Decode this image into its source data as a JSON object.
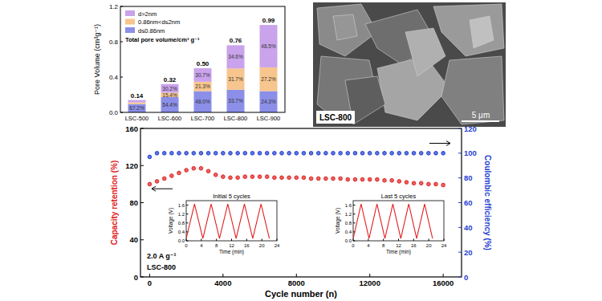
{
  "chart_data": [
    {
      "type": "bar",
      "stacked": true,
      "ylabel": "Pore Volume (cm³g⁻¹)",
      "legend_title": "Total pore volume/cm³ g⁻¹",
      "legend": "upper left",
      "categories": [
        "LSC-500",
        "LSC-600",
        "LSC-700",
        "LSC-800",
        "LSC-900"
      ],
      "series": [
        {
          "name": "d≤0.86nm",
          "color": "#8b8fe8",
          "values": [
            0.094,
            0.174,
            0.24,
            0.256,
            0.241
          ],
          "percent_labels": [
            "67.2%",
            "54.4%",
            "48.0%",
            "33.7%",
            "24.3%"
          ]
        },
        {
          "name": "0.86nm<d≤2nm",
          "color": "#f7c58e",
          "values": [
            0.02,
            0.049,
            0.107,
            0.241,
            0.269
          ],
          "percent_labels": [
            null,
            "15.4%",
            "21.3%",
            "31.7%",
            "27.2%"
          ]
        },
        {
          "name": "d>2nm",
          "color": "#c9a3ec",
          "values": [
            0.026,
            0.097,
            0.153,
            0.263,
            0.48
          ],
          "percent_labels": [
            null,
            "30.2%",
            "30.7%",
            "34.6%",
            "48.5%"
          ]
        }
      ],
      "totals": [
        0.14,
        0.32,
        0.5,
        0.76,
        0.99
      ],
      "total_labels": [
        "0.14",
        "0.32",
        "0.50",
        "0.76",
        "0.99"
      ],
      "ylim": [
        0,
        1.2
      ],
      "yticks": [
        {
          "value": 0,
          "label": "0.0"
        },
        {
          "value": 0.4,
          "label": "0.4"
        },
        {
          "value": 0.8,
          "label": "0.8"
        },
        {
          "value": 1.2,
          "label": "1.2"
        }
      ]
    },
    {
      "type": "scatter",
      "xlabel": "Cycle number (n)",
      "ylabel": "Capacity retention (%)",
      "y2label": "Coulombic efficiency (%)",
      "annotations": [
        "2.0 A g⁻¹",
        "LSC-800"
      ],
      "x": [
        0,
        400,
        800,
        1200,
        1600,
        2000,
        2400,
        2800,
        3200,
        3600,
        4000,
        4400,
        4800,
        5200,
        5600,
        6000,
        6400,
        6800,
        7200,
        7600,
        8000,
        8400,
        8800,
        9200,
        9600,
        10000,
        10400,
        10800,
        11200,
        11600,
        12000,
        12400,
        12800,
        13200,
        13600,
        14000,
        14400,
        14800,
        15200,
        15600,
        16000
      ],
      "series": [
        {
          "color": "#e02020",
          "marker": "circle",
          "values": [
            100,
            103,
            106,
            109,
            112,
            115,
            117,
            117,
            114,
            110,
            108,
            107,
            107,
            108,
            108,
            108,
            108,
            107,
            107,
            107,
            107,
            107,
            106,
            106,
            106,
            106,
            106,
            105,
            105,
            105,
            105,
            105,
            104,
            104,
            103,
            102,
            101,
            101,
            100,
            100,
            99
          ]
        },
        {
          "color": "#1e3cd0",
          "marker": "circle",
          "axis": "y2",
          "values": [
            97,
            100,
            100,
            100,
            100,
            100,
            100,
            100,
            100,
            100,
            100,
            100,
            100,
            100,
            100,
            100,
            100,
            100,
            100,
            100,
            100,
            100,
            100,
            100,
            100,
            100,
            100,
            100,
            100,
            100,
            100,
            100,
            100,
            100,
            100,
            100,
            100,
            100,
            100,
            100,
            100
          ]
        }
      ],
      "xlim": [
        -500,
        17000
      ],
      "xticks": [
        0,
        4000,
        8000,
        12000,
        16000
      ],
      "ylim": [
        0,
        160
      ],
      "yticks": [
        0,
        40,
        80,
        120,
        160
      ],
      "y2lim": [
        0,
        120
      ],
      "y2ticks": [
        0,
        20,
        40,
        60,
        80,
        100,
        120
      ]
    },
    {
      "type": "line",
      "title": "Initial 5 cycles",
      "xlabel": "Time (min)",
      "ylabel": "Voltage (V)",
      "color": "#e02020",
      "x": [
        0,
        2.2,
        4.4,
        6.6,
        8.8,
        11,
        13.2,
        15.4,
        17.6,
        19.8,
        22
      ],
      "values": [
        0.1,
        1.65,
        0.1,
        1.65,
        0.1,
        1.65,
        0.1,
        1.65,
        0.1,
        1.65,
        0.1
      ],
      "xlim": [
        0,
        24
      ],
      "xticks": [
        0,
        4,
        8,
        12,
        16,
        20,
        24
      ],
      "ylim": [
        0,
        1.8
      ],
      "yticks": [
        {
          "value": 0,
          "label": "0.0"
        },
        {
          "value": 0.4,
          "label": "0.4"
        },
        {
          "value": 0.8,
          "label": "0.8"
        },
        {
          "value": 1.2,
          "label": "1.2"
        },
        {
          "value": 1.6,
          "label": "1.6"
        }
      ]
    },
    {
      "type": "line",
      "title": "Last 5 cycles",
      "xlabel": "Time (min)",
      "ylabel": "Voltage (V)",
      "color": "#e02020",
      "x": [
        0,
        2.1,
        4.2,
        6.3,
        8.4,
        10.5,
        12.6,
        14.7,
        16.8,
        18.9,
        21
      ],
      "values": [
        0.1,
        1.65,
        0.1,
        1.65,
        0.1,
        1.65,
        0.1,
        1.65,
        0.1,
        1.65,
        0.1
      ],
      "xlim": [
        0,
        24
      ],
      "xticks": [
        0,
        4,
        8,
        12,
        16,
        20,
        24
      ],
      "ylim": [
        0,
        1.8
      ],
      "yticks": [
        {
          "value": 0,
          "label": "0.0"
        },
        {
          "value": 0.4,
          "label": "0.4"
        },
        {
          "value": 0.8,
          "label": "0.8"
        },
        {
          "value": 1.2,
          "label": "1.2"
        },
        {
          "value": 1.6,
          "label": "1.6"
        }
      ]
    }
  ],
  "image": {
    "label": "LSC-800",
    "scale_bar": "5 μm"
  }
}
